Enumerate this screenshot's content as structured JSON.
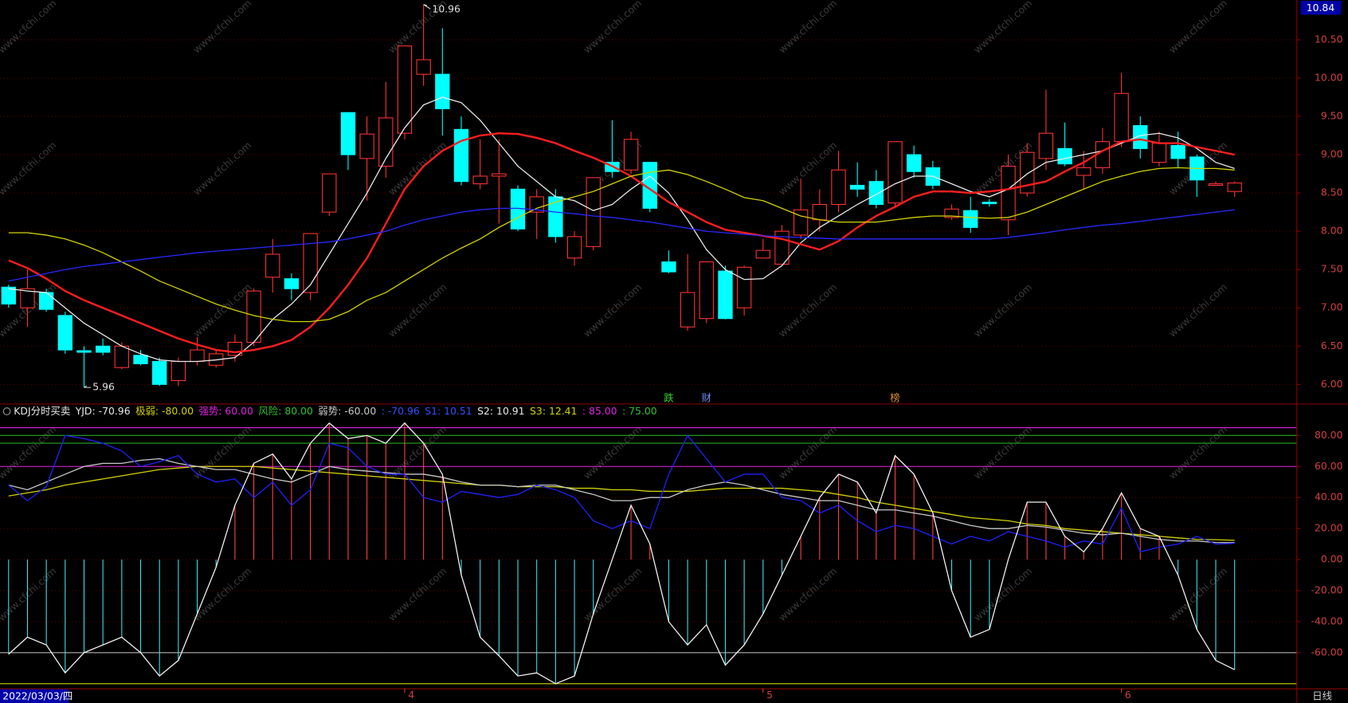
{
  "watermark": "www.cfchi.com",
  "chart_data": [
    {
      "type": "candlestick",
      "cursor_date": "2022/03/03/四",
      "period": "日线",
      "axis_readout": "10.84",
      "max_label": "10.96",
      "min_label": "5.96",
      "up_color": "#ff3232",
      "down_color": "#00ffff",
      "categories": [
        null,
        null,
        null,
        null,
        null,
        null,
        null,
        null,
        null,
        null,
        null,
        null,
        null,
        null,
        null,
        null,
        null,
        null,
        null,
        null,
        null,
        "4",
        null,
        null,
        null,
        null,
        null,
        null,
        null,
        null,
        null,
        null,
        null,
        null,
        null,
        null,
        null,
        null,
        null,
        null,
        "5",
        null,
        null,
        null,
        null,
        null,
        null,
        null,
        null,
        null,
        null,
        null,
        null,
        null,
        null,
        null,
        null,
        null,
        null,
        "6",
        null,
        null,
        null,
        null,
        null,
        null
      ],
      "event_labels": [
        null,
        null,
        null,
        null,
        null,
        null,
        null,
        null,
        null,
        null,
        null,
        null,
        null,
        null,
        null,
        null,
        null,
        null,
        null,
        null,
        null,
        null,
        null,
        null,
        null,
        null,
        null,
        null,
        null,
        null,
        null,
        null,
        null,
        null,
        null,
        {
          "text": "跌",
          "color": "#30d030"
        },
        null,
        {
          "text": "财",
          "color": "#7090ff"
        },
        null,
        null,
        null,
        null,
        null,
        null,
        null,
        null,
        null,
        {
          "text": "榜",
          "color": "#e09030"
        },
        null,
        null,
        null,
        null,
        null,
        null,
        null,
        null,
        null,
        null,
        null,
        null,
        null,
        null,
        null,
        null,
        null,
        null
      ],
      "open": [
        7.27,
        7.0,
        7.2,
        6.9,
        6.44,
        6.5,
        6.22,
        6.38,
        6.3,
        6.05,
        6.3,
        6.25,
        6.38,
        6.55,
        7.4,
        7.38,
        7.2,
        8.25,
        9.55,
        8.95,
        8.85,
        9.28,
        10.05,
        10.05,
        9.33,
        8.62,
        8.72,
        8.55,
        8.25,
        8.45,
        7.65,
        7.8,
        8.9,
        8.8,
        8.9,
        7.6,
        6.75,
        6.86,
        7.48,
        7.0,
        7.65,
        7.57,
        7.95,
        8.15,
        8.35,
        8.6,
        8.65,
        8.37,
        9.0,
        8.83,
        8.18,
        8.27,
        8.38,
        8.15,
        8.5,
        8.95,
        9.08,
        8.73,
        8.83,
        9.17,
        9.38,
        8.9,
        9.12,
        8.97,
        8.6,
        8.52
      ],
      "high": [
        7.3,
        7.5,
        7.25,
        6.95,
        6.5,
        6.6,
        6.55,
        6.45,
        6.35,
        6.35,
        6.62,
        6.45,
        6.65,
        7.25,
        7.9,
        7.45,
        7.97,
        8.75,
        9.55,
        9.5,
        9.95,
        10.42,
        10.96,
        10.65,
        9.5,
        9.2,
        9.2,
        8.6,
        8.55,
        8.55,
        8.0,
        8.7,
        9.45,
        9.3,
        8.9,
        7.75,
        7.7,
        7.6,
        7.55,
        7.55,
        7.9,
        8.08,
        8.68,
        8.55,
        9.05,
        8.9,
        8.8,
        9.17,
        9.12,
        8.92,
        8.35,
        8.45,
        8.42,
        9.0,
        9.15,
        9.85,
        9.42,
        9.05,
        9.35,
        10.07,
        9.5,
        9.3,
        9.3,
        9.0,
        8.65,
        8.65
      ],
      "low": [
        7.0,
        6.75,
        6.95,
        6.4,
        5.96,
        6.38,
        6.2,
        6.25,
        5.98,
        5.98,
        6.25,
        6.22,
        6.3,
        6.5,
        7.2,
        7.1,
        7.1,
        8.2,
        8.8,
        8.4,
        8.7,
        9.2,
        9.9,
        9.25,
        8.6,
        8.55,
        8.1,
        8.0,
        7.9,
        7.85,
        7.55,
        7.75,
        8.7,
        8.75,
        8.25,
        7.45,
        6.7,
        6.8,
        6.85,
        6.9,
        7.65,
        7.55,
        7.9,
        8.0,
        8.25,
        8.45,
        8.3,
        8.3,
        8.7,
        8.55,
        8.15,
        7.98,
        8.32,
        7.95,
        8.45,
        8.8,
        8.85,
        8.55,
        8.75,
        9.1,
        8.95,
        8.85,
        8.82,
        8.45,
        8.6,
        8.45
      ],
      "close": [
        7.05,
        7.25,
        6.98,
        6.45,
        6.42,
        6.42,
        6.5,
        6.27,
        6.0,
        6.3,
        6.45,
        6.4,
        6.55,
        7.22,
        7.7,
        7.25,
        7.97,
        8.75,
        9.0,
        9.27,
        9.48,
        10.42,
        10.24,
        9.6,
        8.65,
        8.72,
        8.75,
        8.03,
        8.45,
        7.93,
        7.93,
        8.7,
        8.78,
        9.2,
        8.3,
        7.47,
        7.2,
        7.6,
        6.86,
        7.53,
        7.75,
        8.0,
        8.28,
        8.35,
        8.8,
        8.55,
        8.35,
        9.17,
        8.78,
        8.6,
        8.29,
        8.05,
        8.36,
        8.85,
        9.03,
        9.28,
        8.88,
        8.83,
        9.17,
        9.8,
        9.08,
        9.15,
        8.95,
        8.67,
        8.62,
        8.63
      ],
      "series": [
        {
          "color": "#e8e8e8",
          "values": [
            7.25,
            7.22,
            7.2,
            7.0,
            6.8,
            6.65,
            6.5,
            6.4,
            6.32,
            6.3,
            6.3,
            6.32,
            6.35,
            6.55,
            6.85,
            7.05,
            7.3,
            7.7,
            8.1,
            8.5,
            8.95,
            9.35,
            9.65,
            9.75,
            9.68,
            9.45,
            9.15,
            8.85,
            8.65,
            8.45,
            8.4,
            8.27,
            8.35,
            8.55,
            8.72,
            8.5,
            8.15,
            7.76,
            7.5,
            7.37,
            7.38,
            7.55,
            7.85,
            8.05,
            8.2,
            8.35,
            8.48,
            8.62,
            8.72,
            8.72,
            8.62,
            8.52,
            8.45,
            8.55,
            8.75,
            8.9,
            8.95,
            9.0,
            9.05,
            9.15,
            9.25,
            9.28,
            9.22,
            9.08,
            8.9,
            8.82
          ]
        },
        {
          "color": "#ff1e1e",
          "values": [
            7.62,
            7.52,
            7.38,
            7.22,
            7.1,
            7.0,
            6.9,
            6.8,
            6.7,
            6.6,
            6.52,
            6.45,
            6.42,
            6.45,
            6.5,
            6.58,
            6.75,
            7.0,
            7.3,
            7.65,
            8.1,
            8.55,
            8.85,
            9.05,
            9.18,
            9.25,
            9.28,
            9.27,
            9.22,
            9.15,
            9.05,
            8.96,
            8.85,
            8.72,
            8.55,
            8.38,
            8.25,
            8.12,
            8.02,
            7.98,
            7.94,
            7.9,
            7.83,
            7.76,
            7.87,
            8.05,
            8.2,
            8.32,
            8.45,
            8.52,
            8.52,
            8.5,
            8.52,
            8.55,
            8.6,
            8.65,
            8.78,
            8.9,
            9.05,
            9.17,
            9.2,
            9.15,
            9.15,
            9.1,
            9.05,
            9.0
          ]
        },
        {
          "color": "#d2d200",
          "values": [
            7.98,
            7.98,
            7.95,
            7.9,
            7.82,
            7.72,
            7.6,
            7.48,
            7.35,
            7.25,
            7.15,
            7.05,
            6.97,
            6.9,
            6.85,
            6.82,
            6.82,
            6.85,
            6.95,
            7.1,
            7.2,
            7.35,
            7.5,
            7.65,
            7.78,
            7.9,
            8.05,
            8.18,
            8.3,
            8.38,
            8.45,
            8.52,
            8.62,
            8.72,
            8.77,
            8.8,
            8.74,
            8.65,
            8.55,
            8.44,
            8.4,
            8.3,
            8.2,
            8.15,
            8.12,
            8.12,
            8.12,
            8.15,
            8.18,
            8.2,
            8.2,
            8.18,
            8.17,
            8.18,
            8.25,
            8.35,
            8.45,
            8.55,
            8.65,
            8.72,
            8.78,
            8.82,
            8.83,
            8.82,
            8.82,
            8.8
          ]
        },
        {
          "color": "#2828ff",
          "values": [
            7.35,
            7.4,
            7.45,
            7.5,
            7.54,
            7.57,
            7.6,
            7.63,
            7.66,
            7.69,
            7.72,
            7.74,
            7.76,
            7.78,
            7.8,
            7.82,
            7.84,
            7.86,
            7.9,
            7.95,
            8.0,
            8.08,
            8.15,
            8.2,
            8.25,
            8.28,
            8.3,
            8.3,
            8.28,
            8.25,
            8.23,
            8.2,
            8.18,
            8.15,
            8.12,
            8.08,
            8.04,
            8.0,
            7.98,
            7.96,
            7.94,
            7.93,
            7.92,
            7.91,
            7.9,
            7.9,
            7.9,
            7.9,
            7.9,
            7.9,
            7.9,
            7.9,
            7.9,
            7.92,
            7.95,
            7.98,
            8.02,
            8.05,
            8.08,
            8.1,
            8.13,
            8.16,
            8.19,
            8.22,
            8.25,
            8.28
          ]
        }
      ],
      "ylim": [
        5.75,
        11.02
      ],
      "yticks": [
        {
          "value": 6,
          "label": "6.00"
        },
        {
          "value": 6.5,
          "label": "6.50"
        },
        {
          "value": 7,
          "label": "7.00"
        },
        {
          "value": 7.5,
          "label": "7.50"
        },
        {
          "value": 8,
          "label": "8.00"
        },
        {
          "value": 8.5,
          "label": "8.50"
        },
        {
          "value": 9,
          "label": "9.00"
        },
        {
          "value": 9.5,
          "label": "9.50"
        },
        {
          "value": 10,
          "label": "10.00"
        },
        {
          "value": 10.5,
          "label": "10.50"
        }
      ],
      "grid": true
    },
    {
      "type": "indicator",
      "title": "KDJ分时买卖",
      "legend_items": [
        {
          "text": "YJD: -70.96",
          "color": "#e8e8e8"
        },
        {
          "text": "极弱: -80.00",
          "color": "#d2d200"
        },
        {
          "text": "强势: 60.00",
          "color": "#e020e0"
        },
        {
          "text": "风险: 80.00",
          "color": "#30c030"
        },
        {
          "text": "弱势: -60.00",
          "color": "#c8c8c8"
        },
        {
          "text": ": -70.96",
          "color": "#3050ff"
        },
        {
          "text": "S1: 10.51",
          "color": "#3050ff"
        },
        {
          "text": "S2: 10.91",
          "color": "#e8e8e8"
        },
        {
          "text": "S3: 12.41",
          "color": "#d2d200"
        },
        {
          "text": ": 85.00",
          "color": "#e020e0"
        },
        {
          "text": ": 75.00",
          "color": "#30c030"
        }
      ],
      "bar_up_color": "#ff4040",
      "bar_down_color": "#40e0e8",
      "series": [
        {
          "color": "#f0f0f0",
          "style": "line+bars",
          "values": [
            -61,
            -50,
            -55,
            -73,
            -60,
            -55,
            -50,
            -60,
            -75,
            -65,
            -35,
            -5,
            35,
            62,
            68,
            52,
            75,
            88,
            78,
            80,
            75,
            88,
            75,
            55,
            -10,
            -50,
            -62,
            -75,
            -73,
            -80,
            -75,
            -35,
            0,
            35,
            10,
            -40,
            -55,
            -42,
            -68,
            -55,
            -35,
            -10,
            15,
            40,
            55,
            50,
            30,
            67,
            55,
            30,
            -20,
            -50,
            -45,
            0,
            37,
            37,
            15,
            5,
            20,
            43,
            20,
            15,
            -10,
            -45,
            -65,
            -70.96
          ]
        },
        {
          "color": "#2020ff",
          "style": "line",
          "values": [
            48,
            38,
            47,
            80,
            78,
            75,
            70,
            60,
            63,
            67,
            55,
            50,
            52,
            40,
            50,
            35,
            45,
            75,
            72,
            60,
            55,
            55,
            40,
            37,
            44,
            42,
            40,
            42,
            48,
            45,
            40,
            25,
            20,
            25,
            20,
            55,
            80,
            65,
            50,
            55,
            55,
            40,
            38,
            30,
            35,
            25,
            18,
            22,
            20,
            15,
            10,
            15,
            12,
            18,
            15,
            12,
            8,
            12,
            10,
            33,
            5,
            8,
            10,
            15,
            10,
            10.51
          ]
        },
        {
          "color": "#c8c8c8",
          "style": "line",
          "values": [
            48,
            45,
            50,
            55,
            60,
            62,
            62,
            64,
            65,
            62,
            60,
            58,
            58,
            55,
            52,
            50,
            55,
            60,
            58,
            57,
            56,
            55,
            55,
            53,
            50,
            48,
            48,
            47,
            48,
            48,
            45,
            42,
            38,
            38,
            40,
            40,
            45,
            48,
            50,
            48,
            45,
            42,
            40,
            38,
            38,
            35,
            32,
            32,
            30,
            28,
            25,
            22,
            20,
            20,
            22,
            21,
            19,
            17,
            16,
            17,
            15,
            13,
            12,
            12,
            11,
            10.91
          ]
        },
        {
          "color": "#d2d200",
          "style": "line",
          "values": [
            41,
            43,
            45,
            48,
            50,
            52,
            54,
            56,
            58,
            59,
            60,
            60,
            60,
            60,
            59,
            58,
            57,
            56,
            55,
            54,
            53,
            52,
            51,
            50,
            49,
            48,
            48,
            47,
            47,
            47,
            46,
            46,
            45,
            45,
            44,
            44,
            44,
            45,
            46,
            46,
            46,
            46,
            45,
            44,
            42,
            40,
            37,
            35,
            33,
            31,
            29,
            27,
            26,
            25,
            23,
            22,
            20,
            19,
            18,
            17,
            16,
            15,
            14,
            13,
            12.8,
            12.41
          ]
        }
      ],
      "levels": [
        {
          "value": 85,
          "color": "#e020e0"
        },
        {
          "value": 80,
          "color": "#20a820"
        },
        {
          "value": 75,
          "color": "#20a820"
        },
        {
          "value": 60,
          "color": "#e020e0"
        },
        {
          "value": -60,
          "color": "#c8c8c8"
        },
        {
          "value": -80,
          "color": "#d2d200"
        }
      ],
      "ylim": [
        -83,
        100
      ],
      "yticks": [
        {
          "value": 80,
          "label": "80.00"
        },
        {
          "value": 60,
          "label": "60.00"
        },
        {
          "value": 40,
          "label": "40.00"
        },
        {
          "value": 20,
          "label": "20.00"
        },
        {
          "value": 0,
          "label": "0.00"
        },
        {
          "value": -20,
          "label": "-20.00"
        },
        {
          "value": -40,
          "label": "-40.00"
        },
        {
          "value": -60,
          "label": "-60.00"
        }
      ],
      "grid": true
    }
  ]
}
